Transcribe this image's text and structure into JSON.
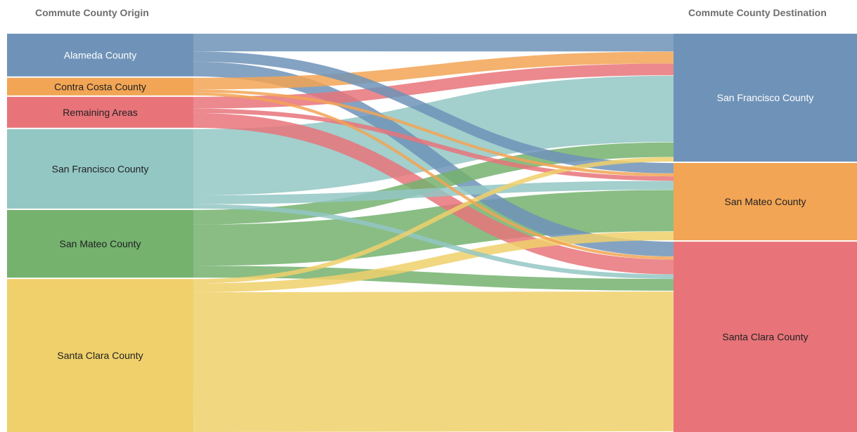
{
  "headers": {
    "origin": "Commute County Origin",
    "destination": "Commute County Destination"
  },
  "colors": {
    "Alameda County": "#6f93b8",
    "Contra Costa County": "#f2a555",
    "Remaining Areas": "#e8747a",
    "San Francisco County": "#93c7c4",
    "San Mateo County": "#74b26e",
    "Santa Clara County": "#f0d06b",
    "dest_San Francisco County": "#6f93b8",
    "dest_San Mateo County": "#f2a555",
    "dest_Santa Clara County": "#e8747a"
  },
  "chart_data": {
    "type": "sankey",
    "title": "",
    "origins": [
      {
        "name": "Alameda County",
        "label_color": "#ffffff"
      },
      {
        "name": "Contra Costa County",
        "label_color": "#222222"
      },
      {
        "name": "Remaining Areas",
        "label_color": "#222222"
      },
      {
        "name": "San Francisco County",
        "label_color": "#222222"
      },
      {
        "name": "San Mateo County",
        "label_color": "#222222"
      },
      {
        "name": "Santa Clara County",
        "label_color": "#222222"
      }
    ],
    "destinations": [
      {
        "name": "San Francisco County",
        "label_color": "#ffffff"
      },
      {
        "name": "San Mateo County",
        "label_color": "#222222"
      },
      {
        "name": "Santa Clara County",
        "label_color": "#222222"
      }
    ],
    "flows": [
      {
        "source": "Alameda County",
        "target": "San Francisco County",
        "value": 12
      },
      {
        "source": "Alameda County",
        "target": "San Mateo County",
        "value": 7
      },
      {
        "source": "Alameda County",
        "target": "Santa Clara County",
        "value": 10
      },
      {
        "source": "Contra Costa County",
        "target": "San Francisco County",
        "value": 8
      },
      {
        "source": "Contra Costa County",
        "target": "San Mateo County",
        "value": 2
      },
      {
        "source": "Contra Costa County",
        "target": "Santa Clara County",
        "value": 2
      },
      {
        "source": "Remaining Areas",
        "target": "San Francisco County",
        "value": 8
      },
      {
        "source": "Remaining Areas",
        "target": "San Mateo County",
        "value": 3
      },
      {
        "source": "Remaining Areas",
        "target": "Santa Clara County",
        "value": 10
      },
      {
        "source": "San Francisco County",
        "target": "San Francisco County",
        "value": 45
      },
      {
        "source": "San Francisco County",
        "target": "San Mateo County",
        "value": 6
      },
      {
        "source": "San Francisco County",
        "target": "Santa Clara County",
        "value": 3
      },
      {
        "source": "San Mateo County",
        "target": "San Francisco County",
        "value": 10
      },
      {
        "source": "San Mateo County",
        "target": "San Mateo County",
        "value": 28
      },
      {
        "source": "San Mateo County",
        "target": "Santa Clara County",
        "value": 8
      },
      {
        "source": "Santa Clara County",
        "target": "San Francisco County",
        "value": 3
      },
      {
        "source": "Santa Clara County",
        "target": "San Mateo County",
        "value": 6
      },
      {
        "source": "Santa Clara County",
        "target": "Santa Clara County",
        "value": 95
      }
    ]
  }
}
